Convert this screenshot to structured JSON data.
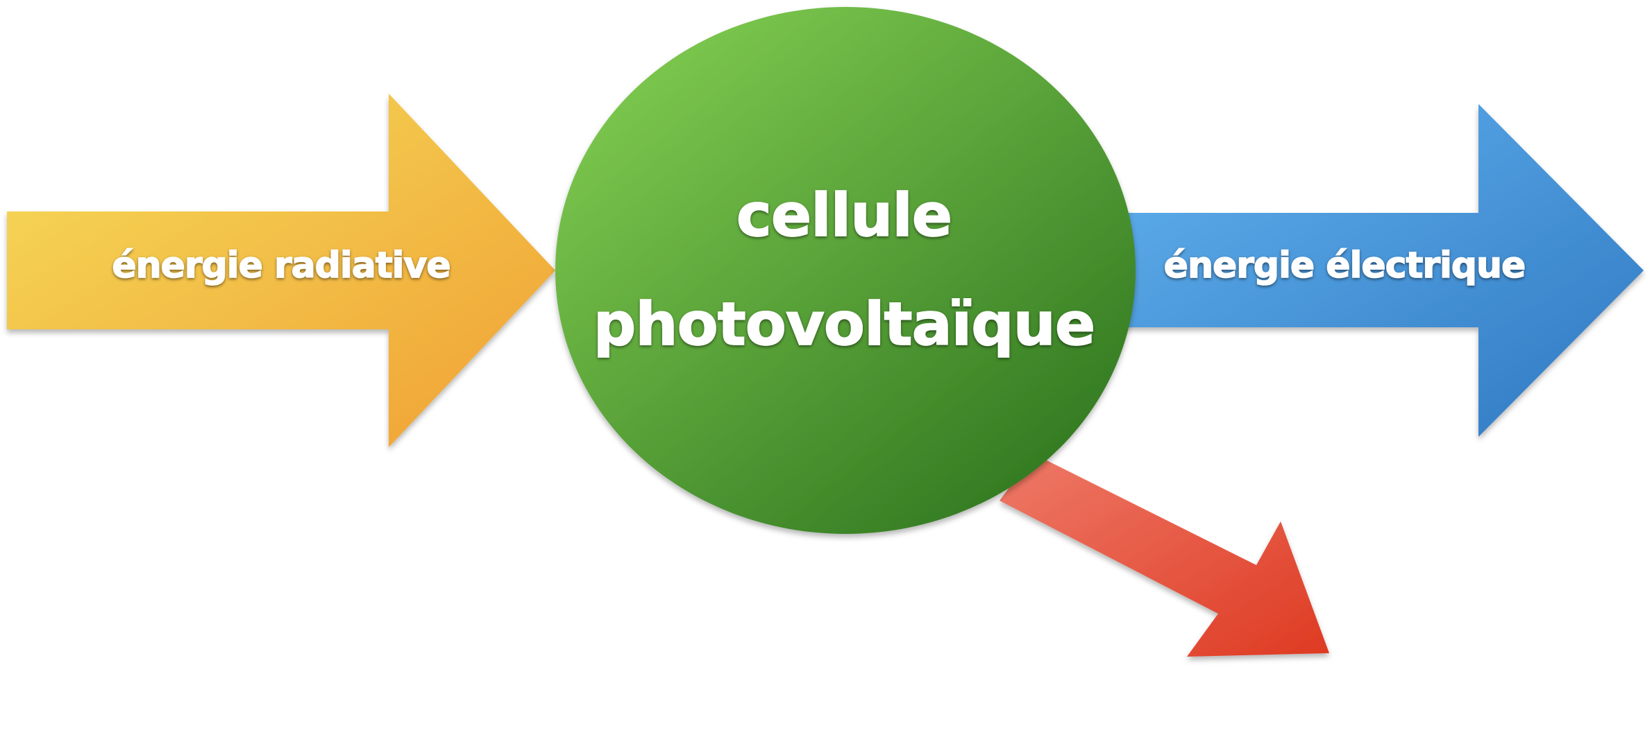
{
  "diagram": {
    "input_label": "énergie radiative",
    "center_line1": "cellule",
    "center_line2": "photovoltaïque",
    "output_label": "énergie électrique"
  },
  "colors": {
    "input_arrow": [
      "#f5dc5a",
      "#f0a033"
    ],
    "center_circle": [
      "#7cc74e",
      "#337a22"
    ],
    "output_arrow": [
      "#62b2ee",
      "#2f78c2"
    ],
    "loss_arrow": [
      "#ee7a68",
      "#de3a22"
    ]
  }
}
